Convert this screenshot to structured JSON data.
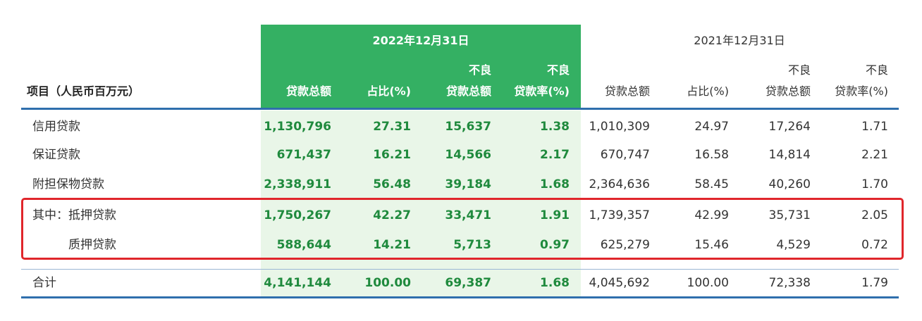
{
  "headers": {
    "item_label": "项目（人民币百万元）",
    "year_2022": "2022年12月31日",
    "year_2021": "2021年12月31日",
    "col_total_loans": "贷款总额",
    "col_share": "占比(%)",
    "col_npl_line1": "不良",
    "col_npl_line2": "贷款总额",
    "col_npl_ratio_line1": "不良",
    "col_npl_ratio_line2": "贷款率(%)"
  },
  "rows": [
    {
      "label": "信用贷款",
      "v2022": [
        "1,130,796",
        "27.31",
        "15,637",
        "1.38"
      ],
      "v2021": [
        "1,010,309",
        "24.97",
        "17,264",
        "1.71"
      ]
    },
    {
      "label": "保证贷款",
      "v2022": [
        "671,437",
        "16.21",
        "14,566",
        "2.17"
      ],
      "v2021": [
        "670,747",
        "16.58",
        "14,814",
        "2.21"
      ]
    },
    {
      "label": "附担保物贷款",
      "v2022": [
        "2,338,911",
        "56.48",
        "39,184",
        "1.68"
      ],
      "v2021": [
        "2,364,636",
        "58.45",
        "40,260",
        "1.70"
      ]
    },
    {
      "label": "其中：抵押贷款",
      "v2022": [
        "1,750,267",
        "42.27",
        "33,471",
        "1.91"
      ],
      "v2021": [
        "1,739,357",
        "42.99",
        "35,731",
        "2.05"
      ]
    },
    {
      "label": "质押贷款",
      "v2022": [
        "588,644",
        "14.21",
        "5,713",
        "0.97"
      ],
      "v2021": [
        "625,279",
        "15.46",
        "4,529",
        "0.72"
      ]
    },
    {
      "label": "合计",
      "v2022": [
        "4,141,144",
        "100.00",
        "69,387",
        "1.68"
      ],
      "v2021": [
        "4,045,692",
        "100.00",
        "72,338",
        "1.79"
      ]
    }
  ],
  "colors": {
    "header_green": "#34b063",
    "body_green": "#e9f6e8",
    "green_text": "#1f8a3d",
    "rule_blue": "#2f6fad",
    "highlight_red": "#e0262b"
  }
}
